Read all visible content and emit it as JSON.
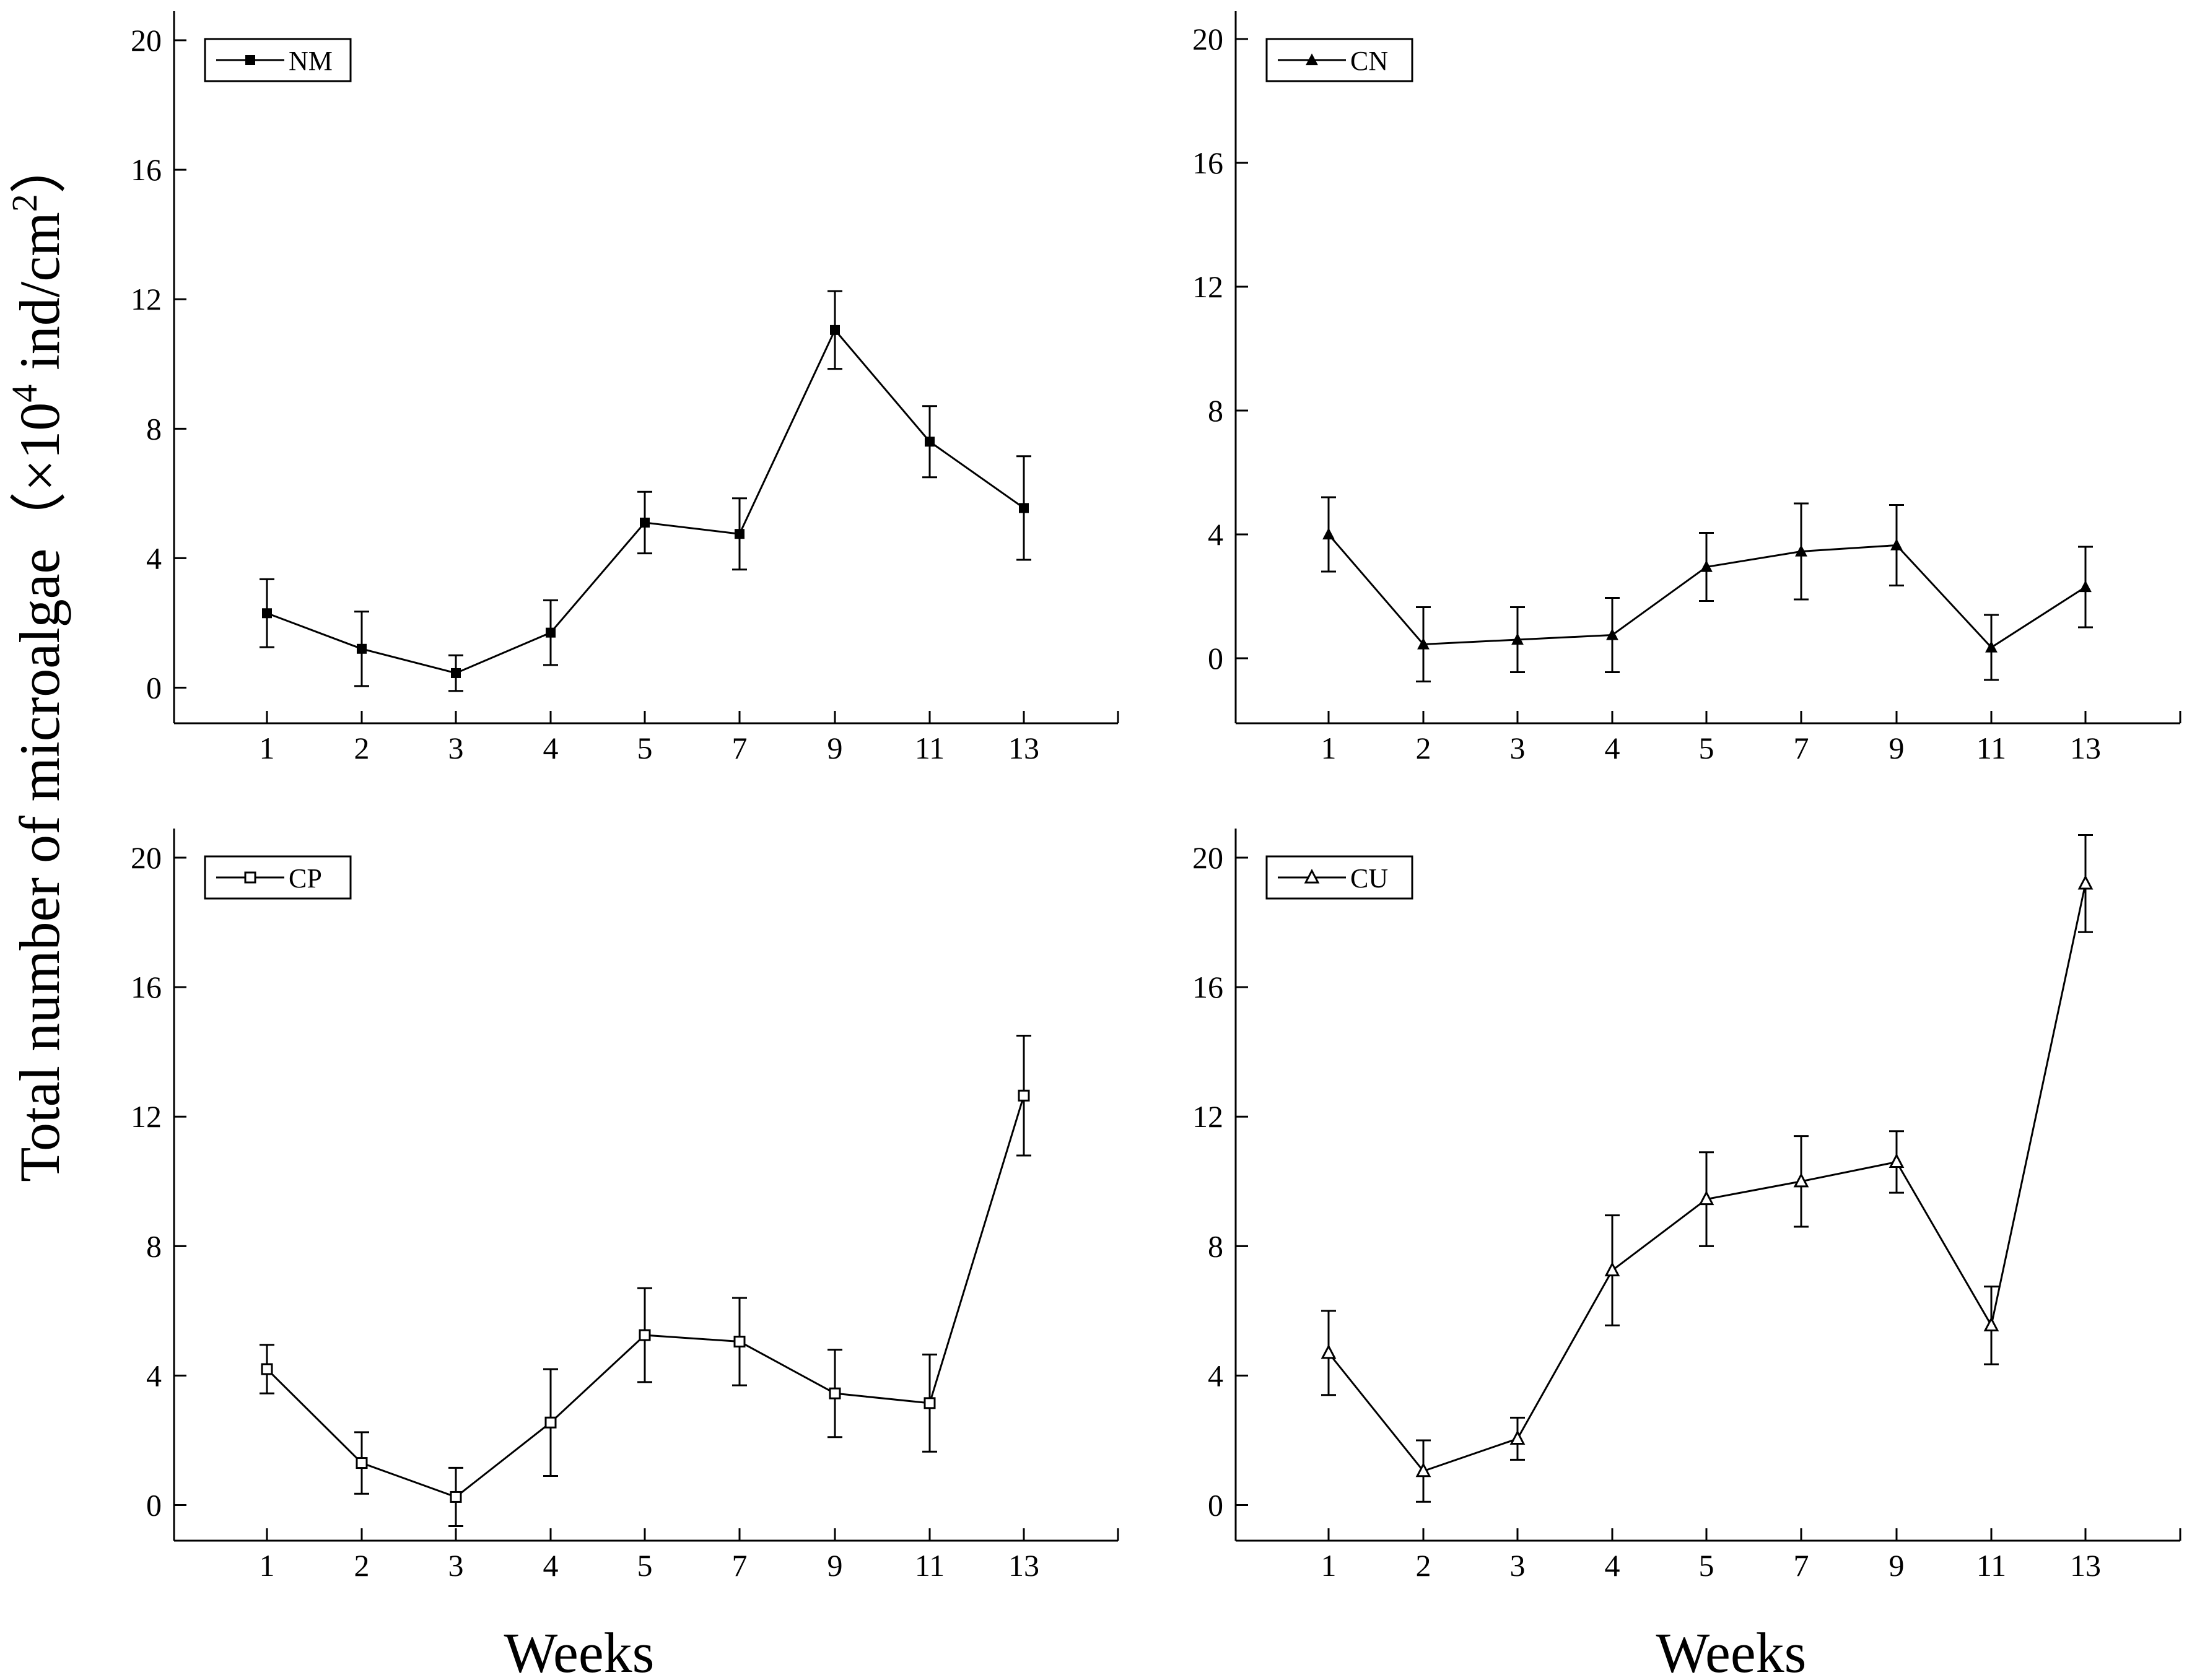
{
  "figure": {
    "ylabel": "Total number of microalgae（×10⁴ ind/cm²）",
    "ylabel_main": "Total number of microalgae",
    "ylabel_paren_open": "（×10",
    "ylabel_sup1": "4",
    "ylabel_mid": " ind/cm",
    "ylabel_sup2": "2",
    "ylabel_paren_close": "）",
    "xlabel_left": "Weeks",
    "xlabel_right": "Weeks"
  },
  "chart_data": [
    {
      "type": "line",
      "legend": "NM",
      "marker": "filled-square",
      "categories": [
        "1",
        "2",
        "3",
        "4",
        "5",
        "7",
        "9",
        "11",
        "13"
      ],
      "values": [
        2.3,
        1.2,
        0.45,
        1.7,
        5.1,
        4.75,
        11.05,
        7.6,
        5.55
      ],
      "errors": [
        1.05,
        1.15,
        0.55,
        1.0,
        0.95,
        1.1,
        1.2,
        1.1,
        1.6
      ],
      "ylim": [
        -1.1,
        20.9
      ],
      "yticks": [
        0,
        4,
        8,
        12,
        16,
        20
      ],
      "legend_position": "top-left",
      "grid": false
    },
    {
      "type": "line",
      "legend": "CN",
      "marker": "filled-triangle",
      "categories": [
        "1",
        "2",
        "3",
        "4",
        "5",
        "7",
        "9",
        "11",
        "13"
      ],
      "values": [
        4.0,
        0.45,
        0.6,
        0.75,
        2.95,
        3.45,
        3.65,
        0.35,
        2.3
      ],
      "errors": [
        1.2,
        1.2,
        1.05,
        1.2,
        1.1,
        1.55,
        1.3,
        1.05,
        1.3
      ],
      "ylim": [
        -2.1,
        20.9
      ],
      "yticks": [
        0,
        4,
        8,
        12,
        16,
        20
      ],
      "legend_position": "top-left",
      "grid": false
    },
    {
      "type": "line",
      "legend": "CP",
      "marker": "open-square",
      "categories": [
        "1",
        "2",
        "3",
        "4",
        "5",
        "7",
        "9",
        "11",
        "13"
      ],
      "values": [
        4.2,
        1.3,
        0.25,
        2.55,
        5.25,
        5.05,
        3.45,
        3.15,
        12.65
      ],
      "errors": [
        0.75,
        0.95,
        0.9,
        1.65,
        1.45,
        1.35,
        1.35,
        1.5,
        1.85
      ],
      "ylim": [
        -1.1,
        20.9
      ],
      "yticks": [
        0,
        4,
        8,
        12,
        16,
        20
      ],
      "legend_position": "top-left",
      "grid": false
    },
    {
      "type": "line",
      "legend": "CU",
      "marker": "open-triangle",
      "categories": [
        "1",
        "2",
        "3",
        "4",
        "5",
        "7",
        "9",
        "11",
        "13"
      ],
      "values": [
        4.7,
        1.05,
        2.05,
        7.25,
        9.45,
        10.0,
        10.6,
        5.55,
        19.2
      ],
      "errors": [
        1.3,
        0.95,
        0.65,
        1.7,
        1.45,
        1.4,
        0.95,
        1.2,
        1.5
      ],
      "ylim": [
        -1.1,
        20.9
      ],
      "yticks": [
        0,
        4,
        8,
        12,
        16,
        20
      ],
      "legend_position": "top-left",
      "grid": false
    }
  ]
}
